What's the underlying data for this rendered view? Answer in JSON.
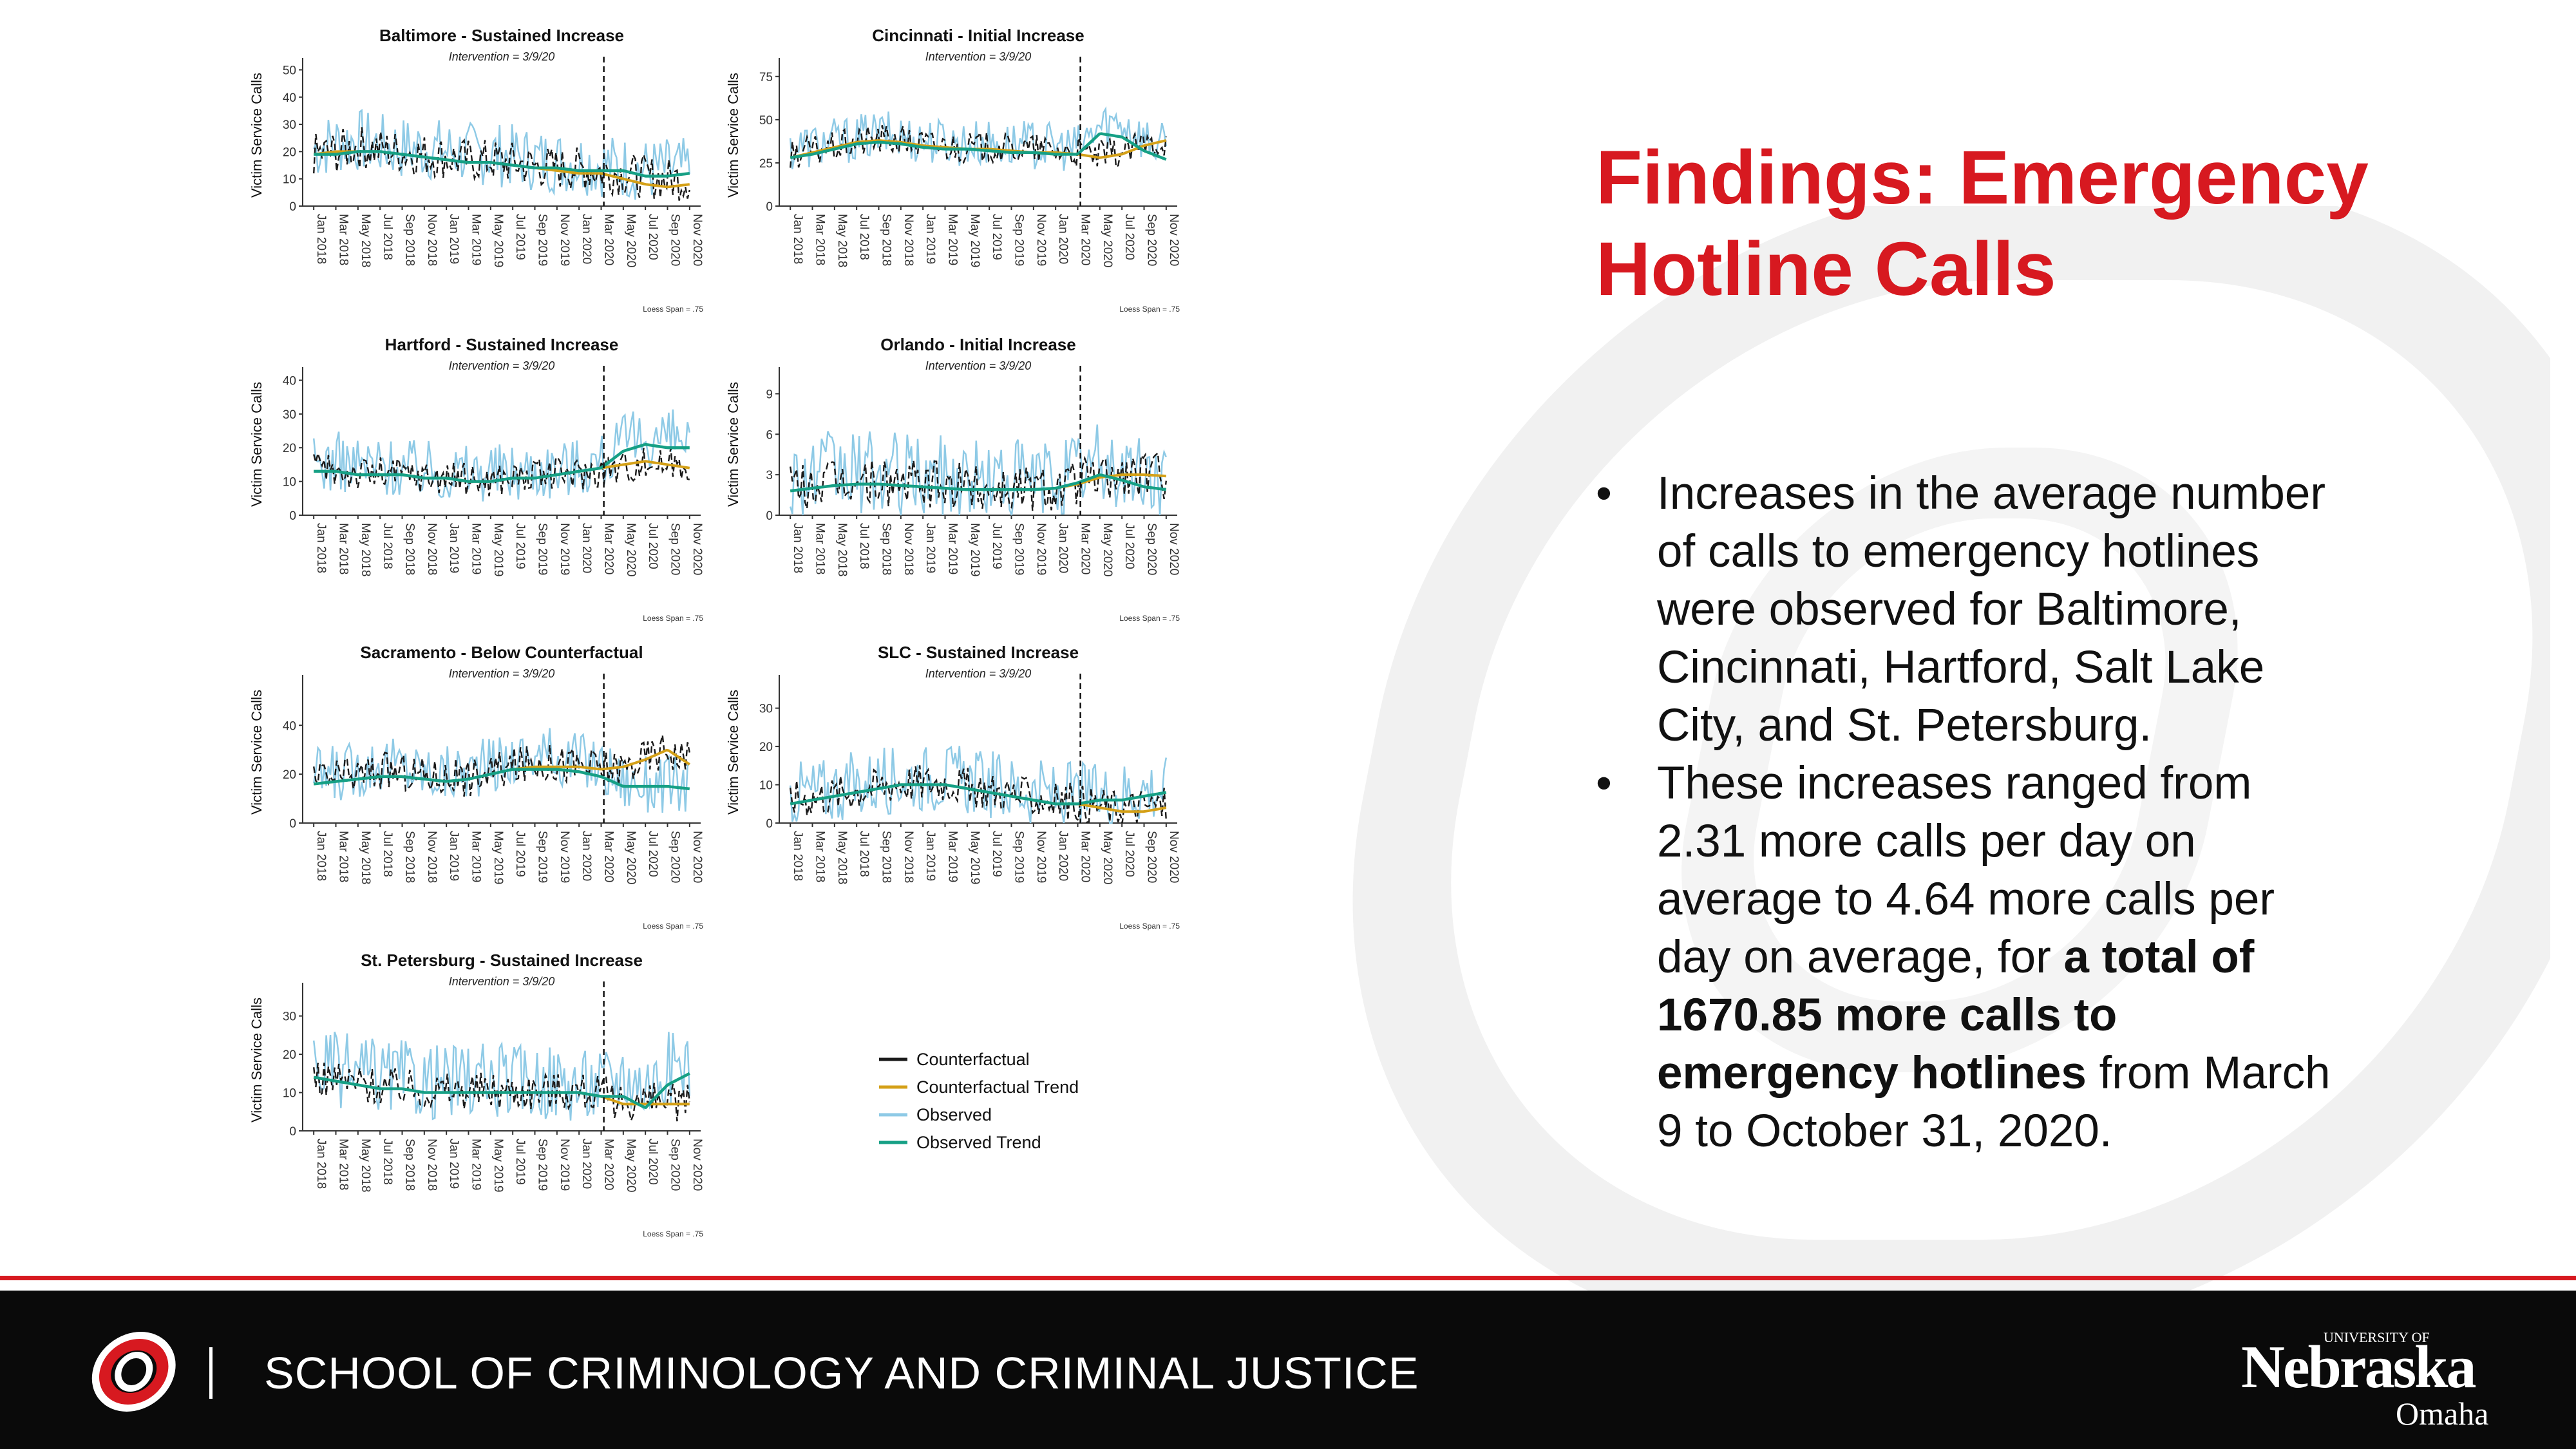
{
  "header": {
    "title": "Findings: Emergency Hotline Calls"
  },
  "findings": {
    "bullets": [
      {
        "parts": [
          {
            "text": "Increases in the average number of calls to emergency hotlines were observed for Baltimore, Cincinnati, Hartford, Salt Lake City, and St. Petersburg.",
            "bold": false
          }
        ]
      },
      {
        "parts": [
          {
            "text": "These increases ranged from 2.31 more calls per day on average to 4.64 more calls per day on average, for ",
            "bold": false
          },
          {
            "text": "a total of 1670.85 more calls to emergency hotlines",
            "bold": true
          },
          {
            "text": " from March 9 to October 31, 2020.",
            "bold": false
          }
        ]
      }
    ]
  },
  "footer": {
    "text": "SCHOOL OF CRIMINOLOGY AND CRIMINAL JUSTICE",
    "logo_lines": [
      "UNIVERSITY OF",
      "Nebraska",
      "Omaha"
    ]
  },
  "colors": {
    "accent": "#d71920",
    "counterfactual": "#1a1a1a",
    "counterfactual_trend": "#d4a017",
    "observed": "#8ecae6",
    "observed_trend": "#16a085",
    "footer_bg": "#0a0a0a"
  },
  "legend": {
    "entries": [
      "Counterfactual",
      "Counterfactual Trend",
      "Observed",
      "Observed Trend"
    ]
  },
  "icons": {
    "logo": "unomaha-o-logo",
    "footer_logo": "unl-omaha-wordmark"
  },
  "chart_data": [
    {
      "type": "line",
      "title": "Baltimore - Sustained Increase",
      "subtitle": "Intervention = 3/9/20",
      "ylabel": "Victim Service Calls",
      "note": "Loess Span = .75",
      "ylim": [
        0,
        52
      ],
      "yticks": [
        0,
        10,
        20,
        30,
        40,
        50
      ],
      "x_ticks": [
        "Jan 2018",
        "Mar 2018",
        "May 2018",
        "Jul 2018",
        "Sep 2018",
        "Nov 2018",
        "Jan 2019",
        "Mar 2019",
        "May 2019",
        "Jul 2019",
        "Sep 2019",
        "Nov 2019",
        "Jan 2020",
        "Mar 2020",
        "May 2020",
        "Jul 2020",
        "Sep 2020",
        "Nov 2020"
      ],
      "intervention": "Mar 9 2020",
      "series": [
        {
          "name": "Counterfactual",
          "values": [
            18,
            19,
            21,
            20,
            19,
            18,
            17,
            16,
            16,
            15,
            14,
            13,
            13,
            12,
            11,
            10,
            9,
            9
          ],
          "noise": 8
        },
        {
          "name": "Counterfactual Trend",
          "values": [
            19,
            20,
            20,
            20,
            19,
            18,
            17,
            16,
            16,
            15,
            14,
            13,
            12,
            12,
            10,
            8,
            7,
            8
          ]
        },
        {
          "name": "Observed",
          "values": [
            20,
            22,
            23,
            21,
            20,
            20,
            19,
            18,
            18,
            17,
            16,
            15,
            15,
            14,
            13,
            12,
            12,
            12
          ],
          "noise": 12
        },
        {
          "name": "Observed Trend",
          "values": [
            19,
            19,
            20,
            20,
            19,
            18,
            17,
            16,
            16,
            15,
            14,
            14,
            13,
            13,
            13,
            11,
            11,
            12
          ]
        }
      ]
    },
    {
      "type": "line",
      "title": "Cincinnati - Initial Increase",
      "subtitle": "Intervention = 3/9/20",
      "ylabel": "Victim Service Calls",
      "note": "Loess Span = .75",
      "ylim": [
        0,
        82
      ],
      "yticks": [
        0,
        25,
        50,
        75
      ],
      "x_ticks": [
        "Jan 2018",
        "Mar 2018",
        "May 2018",
        "Jul 2018",
        "Sep 2018",
        "Nov 2018",
        "Jan 2019",
        "Mar 2019",
        "May 2019",
        "Jul 2019",
        "Sep 2019",
        "Nov 2019",
        "Jan 2020",
        "Mar 2020",
        "May 2020",
        "Jul 2020",
        "Sep 2020",
        "Nov 2020"
      ],
      "intervention": "Mar 9 2020",
      "series": [
        {
          "name": "Counterfactual",
          "values": [
            30,
            31,
            33,
            36,
            38,
            37,
            35,
            34,
            33,
            33,
            32,
            32,
            31,
            30,
            28,
            30,
            34,
            37
          ],
          "noise": 9
        },
        {
          "name": "Counterfactual Trend",
          "values": [
            28,
            31,
            34,
            37,
            38,
            37,
            35,
            34,
            33,
            33,
            32,
            31,
            31,
            30,
            28,
            30,
            35,
            38
          ]
        },
        {
          "name": "Observed",
          "values": [
            32,
            34,
            36,
            38,
            40,
            39,
            37,
            36,
            35,
            35,
            34,
            34,
            33,
            32,
            45,
            48,
            38,
            32
          ],
          "noise": 14
        },
        {
          "name": "Observed Trend",
          "values": [
            28,
            30,
            33,
            36,
            37,
            36,
            34,
            33,
            33,
            32,
            31,
            31,
            30,
            30,
            42,
            40,
            32,
            27
          ]
        }
      ]
    },
    {
      "type": "line",
      "title": "Hartford - Sustained Increase",
      "subtitle": "Intervention = 3/9/20",
      "ylabel": "Victim Service Calls",
      "note": "Loess Span = .75",
      "ylim": [
        0,
        42
      ],
      "yticks": [
        0,
        10,
        20,
        30,
        40
      ],
      "x_ticks": [
        "Jan 2018",
        "Mar 2018",
        "May 2018",
        "Jul 2018",
        "Sep 2018",
        "Nov 2018",
        "Jan 2019",
        "Mar 2019",
        "May 2019",
        "Jul 2019",
        "Sep 2019",
        "Nov 2019",
        "Jan 2020",
        "Mar 2020",
        "May 2020",
        "Jul 2020",
        "Sep 2020",
        "Nov 2020"
      ],
      "intervention": "Mar 9 2020",
      "series": [
        {
          "name": "Counterfactual",
          "values": [
            13,
            13,
            12,
            12,
            12,
            11,
            11,
            10,
            10,
            11,
            11,
            12,
            12,
            13,
            14,
            15,
            15,
            15
          ],
          "noise": 5
        },
        {
          "name": "Counterfactual Trend",
          "values": [
            13,
            13,
            12,
            12,
            12,
            11,
            11,
            10,
            10,
            11,
            11,
            12,
            13,
            14,
            15,
            16,
            15,
            14
          ]
        },
        {
          "name": "Observed",
          "values": [
            14,
            15,
            14,
            14,
            13,
            13,
            12,
            12,
            12,
            12,
            13,
            13,
            14,
            15,
            20,
            22,
            22,
            21
          ],
          "noise": 9
        },
        {
          "name": "Observed Trend",
          "values": [
            13,
            13,
            12,
            12,
            12,
            11,
            11,
            10,
            10,
            11,
            11,
            12,
            13,
            14,
            19,
            21,
            20,
            20
          ]
        }
      ]
    },
    {
      "type": "line",
      "title": "Orlando - Initial Increase",
      "subtitle": "Intervention = 3/9/20",
      "ylabel": "Victim Service Calls",
      "note": "Loess Span = .75",
      "ylim": [
        0,
        10.5
      ],
      "yticks": [
        0,
        3,
        6,
        9
      ],
      "x_ticks": [
        "Jan 2018",
        "Mar 2018",
        "May 2018",
        "Jul 2018",
        "Sep 2018",
        "Nov 2018",
        "Jan 2019",
        "Mar 2019",
        "May 2019",
        "Jul 2019",
        "Sep 2019",
        "Nov 2019",
        "Jan 2020",
        "Mar 2020",
        "May 2020",
        "Jul 2020",
        "Sep 2020",
        "Nov 2020"
      ],
      "intervention": "Mar 9 2020",
      "series": [
        {
          "name": "Counterfactual",
          "values": [
            2.0,
            2.1,
            2.2,
            2.3,
            2.3,
            2.2,
            2.1,
            2.0,
            2.0,
            1.9,
            1.9,
            1.9,
            2.0,
            2.2,
            2.6,
            2.8,
            2.9,
            2.8
          ],
          "noise": 1.8
        },
        {
          "name": "Counterfactual Trend",
          "values": [
            1.8,
            2.0,
            2.2,
            2.3,
            2.3,
            2.2,
            2.1,
            2.0,
            1.9,
            1.9,
            1.9,
            1.9,
            2.0,
            2.3,
            2.8,
            3.0,
            3.0,
            2.9
          ]
        },
        {
          "name": "Observed",
          "values": [
            2.5,
            2.6,
            2.8,
            2.8,
            2.7,
            2.6,
            2.5,
            2.4,
            2.4,
            2.3,
            2.3,
            2.3,
            2.5,
            3.0,
            3.4,
            3.0,
            2.6,
            2.4
          ],
          "noise": 3.2
        },
        {
          "name": "Observed Trend",
          "values": [
            1.8,
            2.0,
            2.2,
            2.3,
            2.3,
            2.2,
            2.1,
            2.0,
            1.9,
            1.9,
            1.9,
            1.9,
            2.0,
            2.4,
            3.0,
            2.6,
            2.1,
            1.9
          ]
        }
      ]
    },
    {
      "type": "line",
      "title": "Sacramento - Below Counterfactual",
      "subtitle": "Intervention = 3/9/20",
      "ylabel": "Victim Service Calls",
      "note": "Loess Span = .75",
      "ylim": [
        0,
        58
      ],
      "yticks": [
        0,
        20,
        40
      ],
      "x_ticks": [
        "Jan 2018",
        "Mar 2018",
        "May 2018",
        "Jul 2018",
        "Sep 2018",
        "Nov 2018",
        "Jan 2019",
        "Mar 2019",
        "May 2019",
        "Jul 2019",
        "Sep 2019",
        "Nov 2019",
        "Jan 2020",
        "Mar 2020",
        "May 2020",
        "Jul 2020",
        "Sep 2020",
        "Nov 2020"
      ],
      "intervention": "Mar 9 2020",
      "series": [
        {
          "name": "Counterfactual",
          "values": [
            17,
            18,
            19,
            21,
            20,
            19,
            18,
            18,
            20,
            22,
            24,
            24,
            23,
            22,
            22,
            26,
            30,
            24
          ],
          "noise": 8
        },
        {
          "name": "Counterfactual Trend",
          "values": [
            16,
            17,
            18,
            19,
            19,
            18,
            17,
            18,
            20,
            22,
            23,
            23,
            23,
            22,
            23,
            26,
            30,
            24
          ]
        },
        {
          "name": "Observed",
          "values": [
            18,
            19,
            21,
            24,
            22,
            20,
            19,
            20,
            22,
            25,
            27,
            26,
            25,
            22,
            16,
            15,
            15,
            15
          ],
          "noise": 12
        },
        {
          "name": "Observed Trend",
          "values": [
            16,
            17,
            18,
            19,
            19,
            18,
            17,
            18,
            20,
            22,
            22,
            22,
            21,
            19,
            15,
            15,
            15,
            14
          ]
        }
      ]
    },
    {
      "type": "line",
      "title": "SLC - Sustained Increase",
      "subtitle": "Intervention = 3/9/20",
      "ylabel": "Victim Service Calls",
      "note": "Loess Span = .75",
      "ylim": [
        0,
        37
      ],
      "yticks": [
        0,
        10,
        20,
        30
      ],
      "x_ticks": [
        "Jan 2018",
        "Mar 2018",
        "May 2018",
        "Jul 2018",
        "Sep 2018",
        "Nov 2018",
        "Jan 2019",
        "Mar 2019",
        "May 2019",
        "Jul 2019",
        "Sep 2019",
        "Nov 2019",
        "Jan 2020",
        "Mar 2020",
        "May 2020",
        "Jul 2020",
        "Sep 2020",
        "Nov 2020"
      ],
      "intervention": "Mar 9 2020",
      "series": [
        {
          "name": "Counterfactual",
          "values": [
            6,
            6,
            7,
            8,
            9,
            10,
            10,
            10,
            9,
            8,
            7,
            6,
            5,
            5,
            4,
            3,
            4,
            4
          ],
          "noise": 5
        },
        {
          "name": "Counterfactual Trend",
          "values": [
            5,
            6,
            7,
            8,
            9,
            10,
            10,
            10,
            9,
            8,
            7,
            6,
            5,
            5,
            4,
            3,
            3,
            4
          ]
        },
        {
          "name": "Observed",
          "values": [
            7,
            7,
            8,
            9,
            10,
            11,
            11,
            11,
            10,
            9,
            8,
            7,
            6,
            6,
            6,
            7,
            8,
            8
          ],
          "noise": 9
        },
        {
          "name": "Observed Trend",
          "values": [
            5,
            6,
            7,
            8,
            9,
            10,
            10,
            10,
            9,
            8,
            7,
            6,
            5,
            5,
            6,
            6,
            7,
            8
          ]
        }
      ]
    },
    {
      "type": "line",
      "title": "St. Petersburg - Sustained Increase",
      "subtitle": "Intervention = 3/9/20",
      "ylabel": "Victim Service Calls",
      "note": "Loess Span = .75",
      "ylim": [
        0,
        37
      ],
      "yticks": [
        0,
        10,
        20,
        30
      ],
      "x_ticks": [
        "Jan 2018",
        "Mar 2018",
        "May 2018",
        "Jul 2018",
        "Sep 2018",
        "Nov 2018",
        "Jan 2019",
        "Mar 2019",
        "May 2019",
        "Jul 2019",
        "Sep 2019",
        "Nov 2019",
        "Jan 2020",
        "Mar 2020",
        "May 2020",
        "Jul 2020",
        "Sep 2020",
        "Nov 2020"
      ],
      "intervention": "Mar 9 2020",
      "series": [
        {
          "name": "Counterfactual",
          "values": [
            14,
            13,
            12,
            11,
            11,
            10,
            10,
            10,
            10,
            10,
            10,
            10,
            10,
            9,
            7,
            7,
            7,
            7
          ],
          "noise": 5
        },
        {
          "name": "Counterfactual Trend",
          "values": [
            14,
            13,
            12,
            11,
            11,
            10,
            10,
            10,
            10,
            10,
            10,
            10,
            10,
            9,
            7,
            7,
            7,
            7
          ]
        },
        {
          "name": "Observed",
          "values": [
            16,
            15,
            14,
            13,
            13,
            12,
            12,
            12,
            12,
            12,
            12,
            12,
            11,
            11,
            14,
            11,
            15,
            17
          ],
          "noise": 10
        },
        {
          "name": "Observed Trend",
          "values": [
            14,
            13,
            12,
            11,
            11,
            10,
            10,
            10,
            10,
            10,
            10,
            10,
            10,
            9,
            9,
            6,
            12,
            15
          ]
        }
      ]
    }
  ]
}
